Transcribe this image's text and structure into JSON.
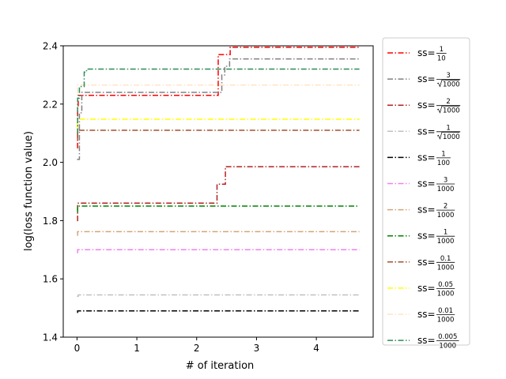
{
  "chart_data": {
    "type": "line",
    "title": "",
    "xlabel": "# of iteration",
    "ylabel": "log(loss function value)",
    "xlim": [
      -0.23,
      4.95
    ],
    "ylim": [
      1.4,
      2.4
    ],
    "x_ticks": [
      0,
      1,
      2,
      3,
      4
    ],
    "x_tick_labels": [
      "0",
      "1",
      "2",
      "3",
      "4"
    ],
    "y_ticks": [
      1.4,
      1.6,
      1.8,
      2.0,
      2.2,
      2.4
    ],
    "y_tick_labels": [
      "1.4",
      "1.6",
      "1.8",
      "2.0",
      "2.2",
      "2.4"
    ],
    "grid": false,
    "legend_position": "outside-right",
    "line_style": "dash-dot",
    "series": [
      {
        "prefix": "ss=",
        "num": "1",
        "den": "10",
        "sqrt": false,
        "color": "#ff0000",
        "points": [
          [
            0,
            2.05
          ],
          [
            0.01,
            2.19
          ],
          [
            0.02,
            2.23
          ],
          [
            2.35,
            2.23
          ],
          [
            2.36,
            2.37
          ],
          [
            2.55,
            2.37
          ],
          [
            2.56,
            2.395
          ],
          [
            4.72,
            2.395
          ]
        ]
      },
      {
        "prefix": "ss=",
        "num": "3",
        "den": "1000",
        "sqrt": true,
        "color": "#808080",
        "points": [
          [
            0,
            2.01
          ],
          [
            0.04,
            2.17
          ],
          [
            0.08,
            2.24
          ],
          [
            2.4,
            2.24
          ],
          [
            2.42,
            2.3
          ],
          [
            2.47,
            2.33
          ],
          [
            2.55,
            2.355
          ],
          [
            4.72,
            2.355
          ]
        ]
      },
      {
        "prefix": "ss=",
        "num": "2",
        "den": "1000",
        "sqrt": true,
        "color": "#b22222",
        "points": [
          [
            0,
            1.8
          ],
          [
            0.01,
            1.86
          ],
          [
            2.33,
            1.86
          ],
          [
            2.34,
            1.925
          ],
          [
            2.43,
            1.925
          ],
          [
            2.48,
            1.985
          ],
          [
            4.72,
            1.985
          ]
        ]
      },
      {
        "prefix": "ss=",
        "num": "1",
        "den": "1000",
        "sqrt": true,
        "color": "#c0c0c0",
        "points": [
          [
            0,
            1.54
          ],
          [
            0.02,
            1.545
          ],
          [
            4.72,
            1.545
          ]
        ]
      },
      {
        "prefix": "ss=",
        "num": "1",
        "den": "100",
        "sqrt": false,
        "color": "#000000",
        "points": [
          [
            0,
            1.485
          ],
          [
            0.01,
            1.49
          ],
          [
            4.72,
            1.49
          ]
        ]
      },
      {
        "prefix": "ss=",
        "num": "3",
        "den": "1000",
        "sqrt": false,
        "color": "#ee82ee",
        "points": [
          [
            0,
            1.69
          ],
          [
            0.01,
            1.7
          ],
          [
            4.72,
            1.7
          ]
        ]
      },
      {
        "prefix": "ss=",
        "num": "2",
        "den": "1000",
        "sqrt": false,
        "color": "#d2a679",
        "points": [
          [
            0,
            1.75
          ],
          [
            0.01,
            1.762
          ],
          [
            4.72,
            1.762
          ]
        ]
      },
      {
        "prefix": "ss=",
        "num": "1",
        "den": "1000",
        "sqrt": false,
        "color": "#008000",
        "points": [
          [
            0,
            1.83
          ],
          [
            0.01,
            1.85
          ],
          [
            4.72,
            1.85
          ]
        ]
      },
      {
        "prefix": "ss=",
        "num": "0.1",
        "den": "1000",
        "sqrt": false,
        "color": "#a0522d",
        "points": [
          [
            0,
            2.08
          ],
          [
            0.01,
            2.11
          ],
          [
            4.72,
            2.11
          ]
        ]
      },
      {
        "prefix": "ss=",
        "num": "0.05",
        "den": "1000",
        "sqrt": false,
        "color": "#ffff00",
        "points": [
          [
            0,
            2.12
          ],
          [
            0.01,
            2.148
          ],
          [
            4.72,
            2.148
          ]
        ]
      },
      {
        "prefix": "ss=",
        "num": "0.01",
        "den": "1000",
        "sqrt": false,
        "color": "#ffe4c4",
        "points": [
          [
            0,
            2.24
          ],
          [
            0.01,
            2.265
          ],
          [
            4.72,
            2.265
          ]
        ]
      },
      {
        "prefix": "ss=",
        "num": "0.005",
        "den": "1000",
        "sqrt": false,
        "color": "#2e8b57",
        "points": [
          [
            0,
            2.1
          ],
          [
            0.01,
            2.22
          ],
          [
            0.04,
            2.26
          ],
          [
            0.12,
            2.31
          ],
          [
            0.16,
            2.32
          ],
          [
            4.72,
            2.32
          ]
        ]
      }
    ]
  }
}
